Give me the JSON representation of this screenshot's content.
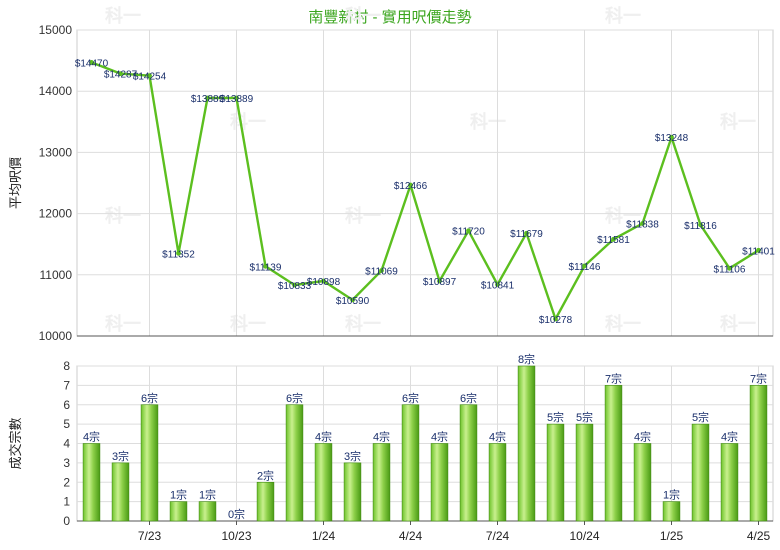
{
  "title": "南豐新村 - 實用呎價走勢",
  "watermark": "科一",
  "colors": {
    "line": "#5cbf1f",
    "bar_light": "#b8ec7a",
    "bar_dark": "#4ea416",
    "title": "#3aa51d",
    "grid": "#dddddd",
    "axis": "#555555"
  },
  "chart_data": [
    {
      "type": "line",
      "ylabel": "平均呎價",
      "ylim": [
        10000,
        15000
      ],
      "yticks": [
        10000,
        11000,
        12000,
        13000,
        14000,
        15000
      ],
      "grid": true,
      "x": [
        1,
        2,
        3,
        4,
        5,
        6,
        7,
        8,
        9,
        10,
        11,
        12,
        13,
        14,
        15,
        16,
        17,
        18,
        19,
        20,
        21,
        22,
        23,
        24,
        25
      ],
      "values": [
        14470,
        14287,
        14254,
        11352,
        13889,
        13889,
        11139,
        10833,
        10898,
        10590,
        11069,
        12466,
        10897,
        11720,
        10841,
        11679,
        10278,
        11146,
        11581,
        11838,
        13248,
        11816,
        11106,
        11401,
        null
      ],
      "labels": [
        "$14470",
        "$14287",
        "$14254",
        "$11352",
        "$13889",
        "$13889",
        "$11139",
        "$10833",
        "$10898",
        "$10590",
        "$11069",
        "$12466",
        "$10897",
        "$11720",
        "$10841",
        "$11679",
        "$10278",
        "$11146",
        "$11581",
        "$11838",
        "$13248",
        "$11816",
        "$11106",
        "$11401",
        ""
      ]
    },
    {
      "type": "bar",
      "ylabel": "成交宗數",
      "ylim": [
        0,
        8
      ],
      "yticks": [
        0,
        1,
        2,
        3,
        4,
        5,
        6,
        7,
        8
      ],
      "grid": true,
      "x": [
        1,
        2,
        3,
        4,
        5,
        6,
        7,
        8,
        9,
        10,
        11,
        12,
        13,
        14,
        15,
        16,
        17,
        18,
        19,
        20,
        21,
        22,
        23,
        24
      ],
      "values": [
        4,
        3,
        6,
        1,
        1,
        0,
        2,
        6,
        4,
        3,
        4,
        6,
        4,
        6,
        4,
        8,
        5,
        5,
        7,
        4,
        1,
        5,
        4,
        7
      ],
      "labels": [
        "4宗",
        "3宗",
        "6宗",
        "1宗",
        "1宗",
        "0宗",
        "2宗",
        "6宗",
        "4宗",
        "3宗",
        "4宗",
        "6宗",
        "4宗",
        "6宗",
        "4宗",
        "8宗",
        "5宗",
        "5宗",
        "7宗",
        "4宗",
        "1宗",
        "5宗",
        "4宗",
        "7宗"
      ],
      "xtick_labels": [
        "7/23",
        "10/23",
        "1/24",
        "4/24",
        "7/24",
        "10/24",
        "1/25",
        "4/25"
      ],
      "xtick_positions": [
        3,
        6,
        9,
        12,
        15,
        18,
        21,
        24
      ]
    }
  ]
}
